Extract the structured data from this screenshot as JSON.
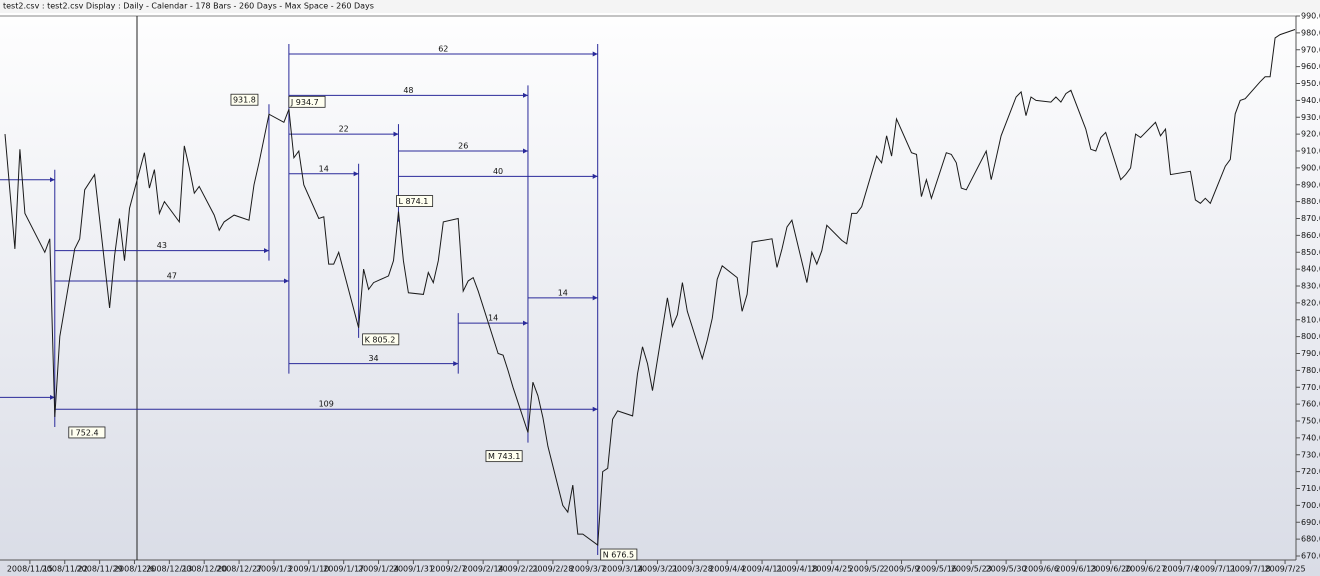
{
  "header": "test2.csv : test2.csv Display :  Daily  - Calendar - 178 Bars - 260 Days -  Max Space - 260 Days",
  "chart_data": {
    "type": "line",
    "x": [
      "2008/11/10",
      "2008/11/12",
      "2008/11/13",
      "2008/11/14",
      "2008/11/18",
      "2008/11/19",
      "2008/11/20",
      "2008/11/21",
      "2008/11/24",
      "2008/11/25",
      "2008/11/26",
      "2008/11/28",
      "2008/12/1",
      "2008/12/2",
      "2008/12/3",
      "2008/12/4",
      "2008/12/5",
      "2008/12/8",
      "2008/12/9",
      "2008/12/10",
      "2008/12/11",
      "2008/12/12",
      "2008/12/15",
      "2008/12/16",
      "2008/12/17",
      "2008/12/18",
      "2008/12/19",
      "2008/12/22",
      "2008/12/23",
      "2008/12/24",
      "2008/12/26",
      "2008/12/29",
      "2008/12/30",
      "2008/12/31",
      "2009/1/2",
      "2009/1/5",
      "2009/1/6",
      "2009/1/7",
      "2009/1/8",
      "2009/1/9",
      "2009/1/12",
      "2009/1/13",
      "2009/1/14",
      "2009/1/15",
      "2009/1/16",
      "2009/1/20",
      "2009/1/21",
      "2009/1/22",
      "2009/1/23",
      "2009/1/26",
      "2009/1/27",
      "2009/1/28",
      "2009/1/29",
      "2009/1/30",
      "2009/2/2",
      "2009/2/3",
      "2009/2/4",
      "2009/2/5",
      "2009/2/6",
      "2009/2/9",
      "2009/2/10",
      "2009/2/11",
      "2009/2/12",
      "2009/2/13",
      "2009/2/17",
      "2009/2/18",
      "2009/2/19",
      "2009/2/20",
      "2009/2/23",
      "2009/2/24",
      "2009/2/25",
      "2009/2/26",
      "2009/2/27",
      "2009/3/2",
      "2009/3/3",
      "2009/3/4",
      "2009/3/5",
      "2009/3/6",
      "2009/3/9",
      "2009/3/10",
      "2009/3/11",
      "2009/3/12",
      "2009/3/13",
      "2009/3/16",
      "2009/3/17",
      "2009/3/18",
      "2009/3/19",
      "2009/3/20",
      "2009/3/23",
      "2009/3/24",
      "2009/3/25",
      "2009/3/26",
      "2009/3/27",
      "2009/3/30",
      "2009/3/31",
      "2009/4/1",
      "2009/4/2",
      "2009/4/3",
      "2009/4/6",
      "2009/4/7",
      "2009/4/8",
      "2009/4/9",
      "2009/4/13",
      "2009/4/14",
      "2009/4/15",
      "2009/4/16",
      "2009/4/17",
      "2009/4/20",
      "2009/4/21",
      "2009/4/22",
      "2009/4/23",
      "2009/4/24",
      "2009/4/27",
      "2009/4/28",
      "2009/4/29",
      "2009/4/30",
      "2009/5/1",
      "2009/5/4",
      "2009/5/5",
      "2009/5/6",
      "2009/5/7",
      "2009/5/8",
      "2009/5/11",
      "2009/5/12",
      "2009/5/13",
      "2009/5/14",
      "2009/5/15",
      "2009/5/18",
      "2009/5/19",
      "2009/5/20",
      "2009/5/21",
      "2009/5/22",
      "2009/5/26",
      "2009/5/27",
      "2009/5/28",
      "2009/5/29",
      "2009/6/1",
      "2009/6/2",
      "2009/6/3",
      "2009/6/4",
      "2009/6/5",
      "2009/6/8",
      "2009/6/9",
      "2009/6/10",
      "2009/6/11",
      "2009/6/12",
      "2009/6/15",
      "2009/6/16",
      "2009/6/17",
      "2009/6/18",
      "2009/6/19",
      "2009/6/22",
      "2009/6/23",
      "2009/6/24",
      "2009/6/25",
      "2009/6/26",
      "2009/6/29",
      "2009/6/30",
      "2009/7/1",
      "2009/7/2",
      "2009/7/6",
      "2009/7/7",
      "2009/7/8",
      "2009/7/9",
      "2009/7/10",
      "2009/7/13",
      "2009/7/14",
      "2009/7/15",
      "2009/7/16",
      "2009/7/17",
      "2009/7/20",
      "2009/7/21",
      "2009/7/22",
      "2009/7/23",
      "2009/7/24",
      "2009/7/27"
    ],
    "values": [
      920,
      852,
      911,
      873,
      850,
      858,
      752.4,
      800,
      852,
      858,
      887,
      896,
      817,
      848,
      870,
      845,
      876,
      909,
      888,
      899,
      873,
      880,
      868,
      913,
      900,
      885,
      889,
      872,
      863,
      868,
      872,
      869,
      890,
      903,
      931.8,
      927,
      934.7,
      906,
      910,
      890,
      870,
      871,
      843,
      843,
      850,
      805.2,
      840,
      828,
      832,
      836,
      845,
      874.1,
      845,
      826,
      825,
      838,
      832,
      845,
      868,
      870,
      827,
      833,
      835,
      827,
      790,
      789,
      780,
      770,
      743.1,
      773,
      765,
      752,
      735,
      700,
      696,
      712,
      683,
      683,
      676.5,
      720,
      722,
      751,
      756,
      753,
      778,
      794,
      784,
      768,
      823,
      806,
      813,
      832,
      815,
      787,
      798,
      811,
      834,
      842,
      835,
      815,
      825,
      856,
      858,
      841,
      852,
      865,
      869,
      832,
      850,
      843,
      851,
      866,
      857,
      855,
      873,
      873,
      877,
      907,
      903,
      919,
      907,
      929,
      909,
      908,
      883,
      893,
      882,
      909,
      908,
      903,
      888,
      887,
      910,
      893,
      906,
      919,
      942,
      945,
      931,
      942,
      940,
      939,
      942,
      939,
      944,
      946,
      923,
      911,
      910,
      918,
      921,
      893,
      896,
      900,
      920,
      918,
      927,
      919,
      923,
      896,
      898,
      881,
      879,
      882,
      879,
      901,
      905,
      932,
      940,
      941,
      951,
      954,
      954,
      977,
      979,
      982
    ],
    "color": "#1a1a1a",
    "xlim": [
      "2008/11/9",
      "2009/7/27"
    ],
    "xticks": [
      "2008/11/15",
      "2008/11/22",
      "2008/11/29",
      "2008/12/6",
      "2008/12/13",
      "2008/12/20",
      "2008/12/27",
      "2009/1/3",
      "2009/1/10",
      "2009/1/17",
      "2009/1/24",
      "2009/1/31",
      "2009/2/7",
      "2009/2/14",
      "2009/2/21",
      "2009/2/28",
      "2009/3/7",
      "2009/3/14",
      "2009/3/21",
      "2009/3/28",
      "2009/4/4",
      "2009/4/11",
      "2009/4/18",
      "2009/4/25",
      "2009/5/2",
      "2009/5/9",
      "2009/5/16",
      "2009/5/23",
      "2009/5/30",
      "2009/6/6",
      "2009/6/13",
      "2009/6/20",
      "2009/6/27",
      "2009/7/4",
      "2009/7/11",
      "2009/7/18",
      "2009/7/25"
    ],
    "ylim": [
      670,
      990
    ],
    "yticks": [
      {
        "value": 670,
        "label": "670.0"
      },
      {
        "value": 680,
        "label": "680.0"
      },
      {
        "value": 690,
        "label": "690.0"
      },
      {
        "value": 700,
        "label": "700.0"
      },
      {
        "value": 710,
        "label": "710.0"
      },
      {
        "value": 720,
        "label": "720.0"
      },
      {
        "value": 730,
        "label": "730.0"
      },
      {
        "value": 740,
        "label": "740.0"
      },
      {
        "value": 750,
        "label": "750.0"
      },
      {
        "value": 760,
        "label": "760.0"
      },
      {
        "value": 770,
        "label": "770.0"
      },
      {
        "value": 780,
        "label": "780.0"
      },
      {
        "value": 790,
        "label": "790.0"
      },
      {
        "value": 800,
        "label": "800.0"
      },
      {
        "value": 810,
        "label": "810.0"
      },
      {
        "value": 820,
        "label": "820.0"
      },
      {
        "value": 830,
        "label": "830.0"
      },
      {
        "value": 840,
        "label": "840.0"
      },
      {
        "value": 850,
        "label": "850.0"
      },
      {
        "value": 860,
        "label": "860.0"
      },
      {
        "value": 870,
        "label": "870.0"
      },
      {
        "value": 880,
        "label": "880.0"
      },
      {
        "value": 890,
        "label": "890.0"
      },
      {
        "value": 900,
        "label": "900.0"
      },
      {
        "value": 910,
        "label": "910.0"
      },
      {
        "value": 920,
        "label": "920.0"
      },
      {
        "value": 930,
        "label": "930.0"
      },
      {
        "value": 940,
        "label": "940.0"
      },
      {
        "value": 950,
        "label": "950.0"
      },
      {
        "value": 960,
        "label": "960.0"
      },
      {
        "value": 970,
        "label": "970.0"
      },
      {
        "value": 980,
        "label": "980.0"
      },
      {
        "value": 990,
        "label": "990.0"
      }
    ],
    "point_labels": [
      {
        "label": "I 752.4",
        "x": "2008/11/20",
        "y": 752.4
      },
      {
        "label": "931.8",
        "x": "2009/1/2",
        "y": 931.8
      },
      {
        "label": "J 934.7",
        "x": "2009/1/6",
        "y": 934.7
      },
      {
        "label": "K 805.2",
        "x": "2009/1/20",
        "y": 805.2
      },
      {
        "label": "L 874.1",
        "x": "2009/1/28",
        "y": 874.1
      },
      {
        "label": "M 743.1",
        "x": "2009/2/23",
        "y": 743.1
      },
      {
        "label": "N 676.5",
        "x": "2009/3/9",
        "y": 676.5
      }
    ],
    "cycles": [
      {
        "from": "2009/1/6",
        "to": "2009/3/9",
        "level": 967.5,
        "value": 62
      },
      {
        "from": "2009/1/6",
        "to": "2009/2/23",
        "level": 943,
        "value": 48
      },
      {
        "from": "2009/1/6",
        "to": "2009/1/28",
        "level": 920,
        "value": 22
      },
      {
        "from": "2009/1/28",
        "to": "2009/2/23",
        "level": 910,
        "value": 26
      },
      {
        "from": "2009/1/28",
        "to": "2009/3/9",
        "level": 895,
        "value": 40
      },
      {
        "from": "2009/1/6",
        "to": "2009/1/20",
        "level": 896.5,
        "value": 14
      },
      {
        "from": "2008/11/20",
        "to": "2009/1/2",
        "level": 851,
        "value": 43
      },
      {
        "from": "2008/11/20",
        "to": "2009/1/6",
        "level": 833,
        "value": 47
      },
      {
        "from": "2009/1/6",
        "to": "2009/2/9",
        "level": 784,
        "value": 34
      },
      {
        "from": "2009/2/9",
        "to": "2009/2/23",
        "level": 808,
        "value": 14
      },
      {
        "from": "2009/2/23",
        "to": "2009/3/9",
        "level": 823,
        "value": 14
      },
      {
        "from": "2008/11/20",
        "to": "2009/3/9",
        "level": 757,
        "value": 109
      },
      {
        "to": "2008/11/20",
        "level": 893
      },
      {
        "to": "2008/11/20",
        "level": 764
      }
    ]
  }
}
